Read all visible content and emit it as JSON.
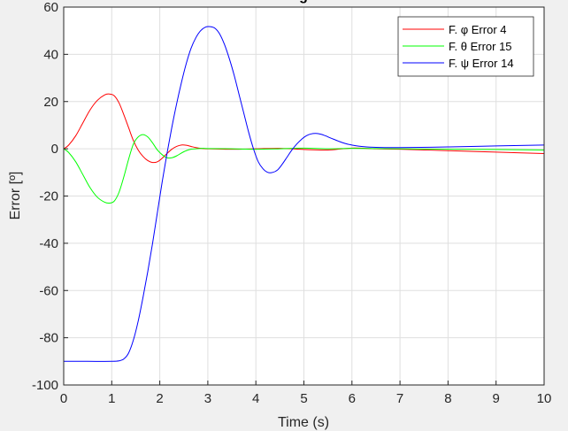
{
  "chart_data": {
    "type": "line",
    "title": "g",
    "xlabel": "Time (s)",
    "ylabel": "Error [º]",
    "xlim": [
      0,
      10
    ],
    "ylim": [
      -100,
      60
    ],
    "xticks": [
      "0",
      "1",
      "2",
      "3",
      "4",
      "5",
      "6",
      "7",
      "8",
      "9",
      "10"
    ],
    "yticks": [
      "60",
      "40",
      "20",
      "0",
      "-20",
      "-40",
      "-60",
      "-80",
      "-100"
    ],
    "grid": true,
    "legend_position": "top-right",
    "series": [
      {
        "name": "F. φ Error 4",
        "color": "#ff0000",
        "x": [
          0,
          0.1,
          0.25,
          0.4,
          0.55,
          0.7,
          0.85,
          0.95,
          1.05,
          1.15,
          1.25,
          1.35,
          1.45,
          1.55,
          1.65,
          1.75,
          1.85,
          1.95,
          2.05,
          2.15,
          2.25,
          2.35,
          2.45,
          2.55,
          2.65,
          2.75,
          2.85,
          3.0,
          3.5,
          4.0,
          4.5,
          5.0,
          5.5,
          6.0,
          6.5,
          7.0,
          8.0,
          9.0,
          10.0
        ],
        "y": [
          0,
          1.5,
          5.5,
          11,
          16.5,
          20.5,
          22.8,
          23.2,
          22.5,
          19.5,
          14.5,
          9,
          3.5,
          -0.5,
          -3.2,
          -5,
          -5.8,
          -5.5,
          -4,
          -2,
          -0.2,
          1,
          1.6,
          1.5,
          1,
          0.5,
          0.2,
          0,
          -0.2,
          0,
          0.2,
          -0.3,
          -0.5,
          0.3,
          0,
          -0.2,
          -0.8,
          -1.4,
          -2.0
        ]
      },
      {
        "name": "F. θ  Error 15",
        "color": "#00ff00",
        "x": [
          0,
          0.1,
          0.25,
          0.4,
          0.55,
          0.7,
          0.85,
          0.95,
          1.05,
          1.15,
          1.25,
          1.35,
          1.45,
          1.55,
          1.65,
          1.75,
          1.85,
          1.95,
          2.05,
          2.15,
          2.25,
          2.35,
          2.45,
          2.55,
          2.65,
          2.75,
          2.9,
          3.0,
          3.5,
          4.0,
          4.5,
          5.0,
          5.5,
          6.0,
          6.5,
          7.0,
          8.0,
          9.0,
          10.0
        ],
        "y": [
          0,
          -1.5,
          -5.5,
          -11,
          -16.5,
          -20.5,
          -22.6,
          -23,
          -22.2,
          -18.5,
          -12,
          -4.5,
          2,
          5,
          6,
          5,
          2.5,
          -0.5,
          -2.5,
          -3.8,
          -3.8,
          -3,
          -1.8,
          -0.8,
          -0.2,
          0,
          0.2,
          0.1,
          0,
          -0.2,
          0,
          0.3,
          0,
          0.2,
          0.1,
          0,
          -0.2,
          -0.3,
          -0.5
        ]
      },
      {
        "name": "F. ψ Error 14",
        "color": "#0000ff",
        "x": [
          0,
          0.5,
          1.0,
          1.15,
          1.25,
          1.35,
          1.45,
          1.55,
          1.65,
          1.75,
          1.85,
          1.95,
          2.05,
          2.15,
          2.25,
          2.35,
          2.45,
          2.55,
          2.65,
          2.75,
          2.85,
          2.95,
          3.05,
          3.15,
          3.25,
          3.35,
          3.45,
          3.55,
          3.65,
          3.75,
          3.85,
          3.95,
          4.05,
          4.15,
          4.25,
          4.35,
          4.45,
          4.55,
          4.65,
          4.75,
          4.85,
          4.95,
          5.05,
          5.15,
          5.25,
          5.35,
          5.45,
          5.55,
          5.65,
          5.75,
          5.85,
          5.95,
          6.05,
          6.2,
          6.5,
          7.0,
          8.0,
          9.0,
          10.0
        ],
        "y": [
          -90,
          -90,
          -90,
          -89.8,
          -89,
          -86.5,
          -81,
          -73,
          -63,
          -52,
          -40,
          -27,
          -14,
          -2,
          9,
          19,
          28,
          36,
          42.5,
          47,
          50,
          51.5,
          51.7,
          51,
          48.5,
          44,
          38,
          31,
          23,
          15,
          7,
          0,
          -5.5,
          -8.5,
          -10,
          -10,
          -9,
          -6.5,
          -3.5,
          -0.5,
          2,
          4,
          5.5,
          6.3,
          6.5,
          6.2,
          5.5,
          4.6,
          3.8,
          3,
          2.3,
          1.8,
          1.4,
          1.0,
          0.6,
          0.5,
          0.8,
          1.2,
          1.6
        ]
      }
    ]
  }
}
